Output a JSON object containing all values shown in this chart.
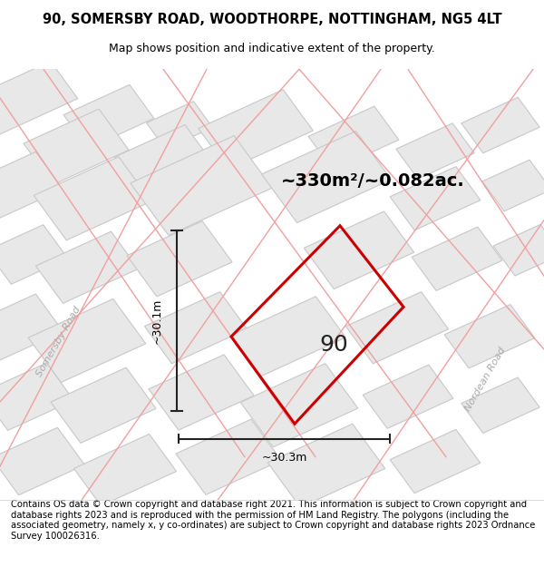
{
  "title": "90, SOMERSBY ROAD, WOODTHORPE, NOTTINGHAM, NG5 4LT",
  "subtitle": "Map shows position and indicative extent of the property.",
  "area_text": "~330m²/~0.082ac.",
  "dim_vertical": "~30.1m",
  "dim_horizontal": "~30.3m",
  "property_label": "90",
  "road_label_left": "Somersby Road",
  "road_label_right": "Nordean Road",
  "footer": "Contains OS data © Crown copyright and database right 2021. This information is subject to Crown copyright and database rights 2023 and is reproduced with the permission of HM Land Registry. The polygons (including the associated geometry, namely x, y co-ordinates) are subject to Crown copyright and database rights 2023 Ordnance Survey 100026316.",
  "map_bg": "#f8f8f8",
  "building_fill": "#e8e8e8",
  "building_edge": "#c8c8c8",
  "road_color": "#f0a0a0",
  "property_color": "#cc0000",
  "title_fontsize": 10.5,
  "subtitle_fontsize": 9,
  "footer_fontsize": 7.2,
  "area_fontsize": 14,
  "dim_fontsize": 9,
  "label_fontsize": 18
}
